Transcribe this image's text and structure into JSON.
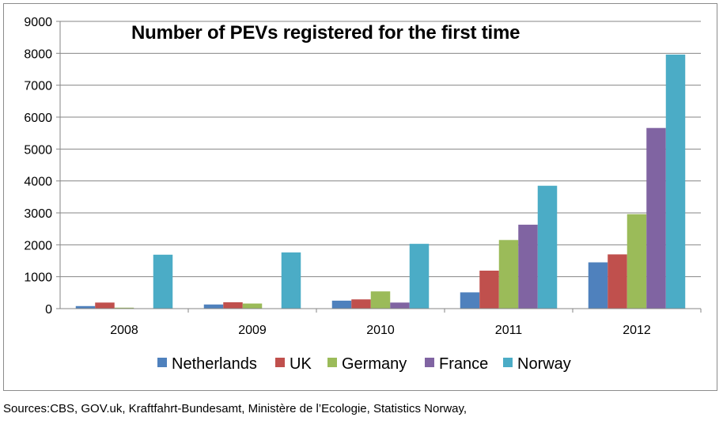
{
  "chart_data": {
    "type": "bar",
    "title": "Number of PEVs registered for the first time",
    "categories": [
      "2008",
      "2009",
      "2010",
      "2011",
      "2012"
    ],
    "series": [
      {
        "name": "Netherlands",
        "color": "#4F81BD",
        "values": [
          80,
          130,
          250,
          510,
          1450
        ]
      },
      {
        "name": "UK",
        "color": "#C0504D",
        "values": [
          190,
          200,
          290,
          1190,
          1700
        ]
      },
      {
        "name": "Germany",
        "color": "#9BBB59",
        "values": [
          30,
          160,
          540,
          2150,
          2960
        ]
      },
      {
        "name": "France",
        "color": "#8064A2",
        "values": [
          0,
          0,
          190,
          2630,
          5660
        ]
      },
      {
        "name": "Norway",
        "color": "#4BACC6",
        "values": [
          1690,
          1760,
          2030,
          3850,
          7960
        ]
      }
    ],
    "ylim": [
      0,
      9000
    ],
    "yticks": [
      0,
      1000,
      2000,
      3000,
      4000,
      5000,
      6000,
      7000,
      8000,
      9000
    ],
    "grid": true,
    "legend": "bottom"
  },
  "sources": "Sources:CBS, GOV.uk, Kraftfahrt-Bundesamt, Ministère de l’Ecologie, Statistics Norway,"
}
